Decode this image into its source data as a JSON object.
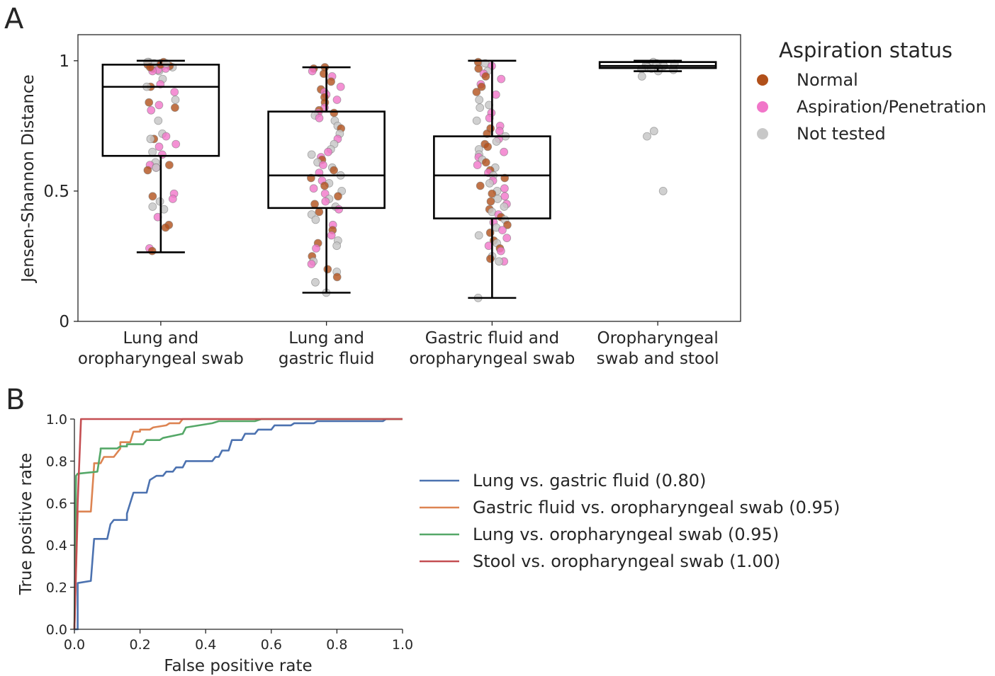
{
  "panel_a": {
    "letter": "A",
    "legend_title": "Aspiration status",
    "legend": [
      {
        "label": "Normal",
        "color": "#B1501A"
      },
      {
        "label": "Aspiration/Penetration",
        "color": "#F176C9"
      },
      {
        "label": "Not tested",
        "color": "#C8C8C8"
      }
    ]
  },
  "panel_b": {
    "letter": "B"
  },
  "chart_data": [
    {
      "type": "box",
      "ylabel": "Jensen-Shannon Distance",
      "xlabel": "",
      "ylim": [
        0,
        1.1
      ],
      "yticks": [
        0,
        0.5,
        1
      ],
      "ytick_labels": [
        "0",
        "0.5",
        "1"
      ],
      "categories": [
        {
          "line1": "Lung and",
          "line2": "oropharyngeal swab"
        },
        {
          "line1": "Lung and",
          "line2": "gastric fluid"
        },
        {
          "line1": "Gastric fluid and",
          "line2": "oropharyngeal swab"
        },
        {
          "line1": "Oropharyngeal",
          "line2": "swab and stool"
        }
      ],
      "boxes": [
        {
          "whisker_low": 0.265,
          "q1": 0.635,
          "median": 0.9,
          "q3": 0.985,
          "whisker_high": 1.0
        },
        {
          "whisker_low": 0.11,
          "q1": 0.435,
          "median": 0.56,
          "q3": 0.805,
          "whisker_high": 0.975
        },
        {
          "whisker_low": 0.09,
          "q1": 0.395,
          "median": 0.56,
          "q3": 0.71,
          "whisker_high": 1.0
        },
        {
          "whisker_low": 0.96,
          "q1": 0.972,
          "median": 0.98,
          "q3": 0.995,
          "whisker_high": 1.0
        }
      ],
      "points": [
        [
          [
            0.99,
            "N"
          ],
          [
            0.98,
            "A"
          ],
          [
            0.995,
            "T"
          ],
          [
            0.97,
            "N"
          ],
          [
            0.96,
            "T"
          ],
          [
            0.99,
            "A"
          ],
          [
            0.985,
            "N"
          ],
          [
            0.975,
            "T"
          ],
          [
            0.995,
            "N"
          ],
          [
            0.965,
            "A"
          ],
          [
            0.99,
            "T"
          ],
          [
            0.98,
            "N"
          ],
          [
            0.97,
            "A"
          ],
          [
            0.995,
            "T"
          ],
          [
            0.985,
            "N"
          ],
          [
            0.96,
            "A"
          ],
          [
            0.99,
            "T"
          ],
          [
            0.975,
            "N"
          ],
          [
            0.93,
            "T"
          ],
          [
            0.91,
            "A"
          ],
          [
            0.9,
            "N"
          ],
          [
            0.9,
            "T"
          ],
          [
            0.88,
            "A"
          ],
          [
            0.85,
            "T"
          ],
          [
            0.84,
            "N"
          ],
          [
            0.83,
            "A"
          ],
          [
            0.82,
            "N"
          ],
          [
            0.81,
            "A"
          ],
          [
            0.77,
            "T"
          ],
          [
            0.72,
            "T"
          ],
          [
            0.71,
            "A"
          ],
          [
            0.7,
            "N"
          ],
          [
            0.7,
            "T"
          ],
          [
            0.68,
            "A"
          ],
          [
            0.67,
            "A"
          ],
          [
            0.65,
            "T"
          ],
          [
            0.64,
            "A"
          ],
          [
            0.61,
            "T"
          ],
          [
            0.6,
            "A"
          ],
          [
            0.6,
            "N"
          ],
          [
            0.59,
            "A"
          ],
          [
            0.59,
            "T"
          ],
          [
            0.58,
            "N"
          ],
          [
            0.49,
            "A"
          ],
          [
            0.48,
            "N"
          ],
          [
            0.47,
            "A"
          ],
          [
            0.46,
            "T"
          ],
          [
            0.44,
            "T"
          ],
          [
            0.43,
            "T"
          ],
          [
            0.4,
            "A"
          ],
          [
            0.37,
            "N"
          ],
          [
            0.36,
            "N"
          ],
          [
            0.28,
            "A"
          ],
          [
            0.27,
            "N"
          ]
        ],
        [
          [
            0.975,
            "N"
          ],
          [
            0.97,
            "N"
          ],
          [
            0.96,
            "A"
          ],
          [
            0.95,
            "N"
          ],
          [
            0.94,
            "A"
          ],
          [
            0.92,
            "N"
          ],
          [
            0.9,
            "A"
          ],
          [
            0.89,
            "N"
          ],
          [
            0.88,
            "A"
          ],
          [
            0.87,
            "A"
          ],
          [
            0.86,
            "N"
          ],
          [
            0.85,
            "A"
          ],
          [
            0.84,
            "N"
          ],
          [
            0.82,
            "A"
          ],
          [
            0.81,
            "N"
          ],
          [
            0.8,
            "A"
          ],
          [
            0.8,
            "N"
          ],
          [
            0.79,
            "T"
          ],
          [
            0.78,
            "A"
          ],
          [
            0.77,
            "T"
          ],
          [
            0.75,
            "T"
          ],
          [
            0.74,
            "N"
          ],
          [
            0.72,
            "T"
          ],
          [
            0.7,
            "A"
          ],
          [
            0.68,
            "T"
          ],
          [
            0.66,
            "T"
          ],
          [
            0.65,
            "A"
          ],
          [
            0.64,
            "T"
          ],
          [
            0.63,
            "A"
          ],
          [
            0.62,
            "N"
          ],
          [
            0.61,
            "T"
          ],
          [
            0.6,
            "A"
          ],
          [
            0.59,
            "T"
          ],
          [
            0.58,
            "N"
          ],
          [
            0.57,
            "A"
          ],
          [
            0.56,
            "T"
          ],
          [
            0.55,
            "N"
          ],
          [
            0.54,
            "A"
          ],
          [
            0.53,
            "T"
          ],
          [
            0.52,
            "N"
          ],
          [
            0.51,
            "A"
          ],
          [
            0.5,
            "T"
          ],
          [
            0.49,
            "A"
          ],
          [
            0.48,
            "N"
          ],
          [
            0.47,
            "T"
          ],
          [
            0.46,
            "A"
          ],
          [
            0.45,
            "N"
          ],
          [
            0.44,
            "T"
          ],
          [
            0.43,
            "A"
          ],
          [
            0.42,
            "N"
          ],
          [
            0.41,
            "T"
          ],
          [
            0.39,
            "T"
          ],
          [
            0.37,
            "A"
          ],
          [
            0.35,
            "N"
          ],
          [
            0.33,
            "A"
          ],
          [
            0.31,
            "T"
          ],
          [
            0.3,
            "N"
          ],
          [
            0.29,
            "T"
          ],
          [
            0.28,
            "A"
          ],
          [
            0.25,
            "N"
          ],
          [
            0.23,
            "T"
          ],
          [
            0.22,
            "A"
          ],
          [
            0.2,
            "N"
          ],
          [
            0.19,
            "T"
          ],
          [
            0.17,
            "N"
          ],
          [
            0.15,
            "T"
          ],
          [
            0.11,
            "T"
          ]
        ],
        [
          [
            0.995,
            "N"
          ],
          [
            0.99,
            "T"
          ],
          [
            0.98,
            "A"
          ],
          [
            0.97,
            "N"
          ],
          [
            0.96,
            "T"
          ],
          [
            0.95,
            "A"
          ],
          [
            0.94,
            "N"
          ],
          [
            0.93,
            "A"
          ],
          [
            0.91,
            "A"
          ],
          [
            0.9,
            "N"
          ],
          [
            0.88,
            "N"
          ],
          [
            0.87,
            "A"
          ],
          [
            0.85,
            "T"
          ],
          [
            0.83,
            "T"
          ],
          [
            0.82,
            "T"
          ],
          [
            0.8,
            "A"
          ],
          [
            0.78,
            "A"
          ],
          [
            0.77,
            "T"
          ],
          [
            0.75,
            "A"
          ],
          [
            0.74,
            "N"
          ],
          [
            0.73,
            "A"
          ],
          [
            0.72,
            "N"
          ],
          [
            0.71,
            "T"
          ],
          [
            0.7,
            "A"
          ],
          [
            0.69,
            "T"
          ],
          [
            0.68,
            "N"
          ],
          [
            0.67,
            "N"
          ],
          [
            0.66,
            "T"
          ],
          [
            0.65,
            "A"
          ],
          [
            0.64,
            "T"
          ],
          [
            0.63,
            "A"
          ],
          [
            0.62,
            "T"
          ],
          [
            0.61,
            "N"
          ],
          [
            0.6,
            "A"
          ],
          [
            0.59,
            "T"
          ],
          [
            0.58,
            "N"
          ],
          [
            0.57,
            "A"
          ],
          [
            0.56,
            "T"
          ],
          [
            0.55,
            "N"
          ],
          [
            0.54,
            "A"
          ],
          [
            0.53,
            "T"
          ],
          [
            0.52,
            "N"
          ],
          [
            0.51,
            "A"
          ],
          [
            0.5,
            "T"
          ],
          [
            0.49,
            "N"
          ],
          [
            0.48,
            "A"
          ],
          [
            0.47,
            "T"
          ],
          [
            0.46,
            "N"
          ],
          [
            0.45,
            "A"
          ],
          [
            0.44,
            "T"
          ],
          [
            0.43,
            "N"
          ],
          [
            0.42,
            "T"
          ],
          [
            0.41,
            "A"
          ],
          [
            0.4,
            "N"
          ],
          [
            0.39,
            "T"
          ],
          [
            0.38,
            "A"
          ],
          [
            0.37,
            "N"
          ],
          [
            0.36,
            "T"
          ],
          [
            0.35,
            "A"
          ],
          [
            0.34,
            "N"
          ],
          [
            0.33,
            "T"
          ],
          [
            0.32,
            "A"
          ],
          [
            0.31,
            "N"
          ],
          [
            0.3,
            "T"
          ],
          [
            0.29,
            "A"
          ],
          [
            0.28,
            "N"
          ],
          [
            0.27,
            "A"
          ],
          [
            0.25,
            "T"
          ],
          [
            0.24,
            "N"
          ],
          [
            0.23,
            "A"
          ],
          [
            0.23,
            "T"
          ],
          [
            0.09,
            "T"
          ]
        ],
        [
          [
            0.995,
            "T"
          ],
          [
            0.99,
            "T"
          ],
          [
            0.988,
            "T"
          ],
          [
            0.985,
            "T"
          ],
          [
            0.983,
            "T"
          ],
          [
            0.98,
            "T"
          ],
          [
            0.978,
            "T"
          ],
          [
            0.975,
            "T"
          ],
          [
            0.972,
            "T"
          ],
          [
            0.97,
            "T"
          ],
          [
            0.968,
            "T"
          ],
          [
            0.965,
            "T"
          ],
          [
            0.96,
            "T"
          ],
          [
            0.94,
            "T"
          ],
          [
            0.73,
            "T"
          ],
          [
            0.71,
            "T"
          ],
          [
            0.5,
            "T"
          ]
        ]
      ]
    },
    {
      "type": "line",
      "xlabel": "False positive rate",
      "ylabel": "True positive rate",
      "xlim": [
        0,
        1.0
      ],
      "ylim": [
        0,
        1.0
      ],
      "xticks": [
        "0.0",
        "0.2",
        "0.4",
        "0.6",
        "0.8",
        "1.0"
      ],
      "yticks": [
        "0.0",
        "0.2",
        "0.4",
        "0.6",
        "0.8",
        "1.0"
      ],
      "series": [
        {
          "name": "Lung vs. gastric fluid (0.80)",
          "color": "#4C72B0",
          "x": [
            0,
            0.01,
            0.01,
            0.05,
            0.06,
            0.1,
            0.11,
            0.12,
            0.16,
            0.16,
            0.17,
            0.18,
            0.19,
            0.22,
            0.23,
            0.24,
            0.25,
            0.27,
            0.28,
            0.3,
            0.31,
            0.33,
            0.34,
            0.37,
            0.38,
            0.42,
            0.43,
            0.44,
            0.45,
            0.47,
            0.48,
            0.51,
            0.52,
            0.55,
            0.56,
            0.6,
            0.61,
            0.66,
            0.67,
            0.73,
            0.74,
            0.94,
            0.95,
            1.0
          ],
          "y": [
            0,
            0.0,
            0.22,
            0.23,
            0.43,
            0.43,
            0.5,
            0.52,
            0.52,
            0.55,
            0.6,
            0.65,
            0.65,
            0.65,
            0.71,
            0.72,
            0.73,
            0.73,
            0.75,
            0.75,
            0.77,
            0.77,
            0.8,
            0.8,
            0.8,
            0.8,
            0.82,
            0.82,
            0.85,
            0.85,
            0.9,
            0.9,
            0.93,
            0.93,
            0.95,
            0.95,
            0.97,
            0.97,
            0.98,
            0.98,
            0.99,
            0.99,
            1.0,
            1.0
          ]
        },
        {
          "name": "Gastric fluid vs. oropharyngeal swab (0.95)",
          "color": "#DD8452",
          "x": [
            0,
            0.01,
            0.01,
            0.05,
            0.06,
            0.06,
            0.08,
            0.09,
            0.12,
            0.14,
            0.14,
            0.17,
            0.18,
            0.2,
            0.2,
            0.23,
            0.24,
            0.28,
            0.29,
            0.32,
            0.33,
            1.0
          ],
          "y": [
            0,
            0.55,
            0.56,
            0.56,
            0.78,
            0.79,
            0.79,
            0.82,
            0.82,
            0.86,
            0.89,
            0.89,
            0.94,
            0.94,
            0.95,
            0.95,
            0.96,
            0.97,
            0.98,
            0.98,
            1.0,
            1.0
          ]
        },
        {
          "name": "Lung vs. oropharyngeal swab (0.95)",
          "color": "#55A868",
          "x": [
            0,
            0.005,
            0.01,
            0.07,
            0.08,
            0.08,
            0.13,
            0.14,
            0.16,
            0.16,
            0.21,
            0.22,
            0.26,
            0.27,
            0.33,
            0.34,
            0.38,
            0.42,
            0.44,
            0.5,
            0.55,
            0.57,
            0.58,
            1.0
          ],
          "y": [
            0,
            0.73,
            0.74,
            0.75,
            0.85,
            0.86,
            0.86,
            0.87,
            0.87,
            0.88,
            0.88,
            0.9,
            0.9,
            0.91,
            0.93,
            0.96,
            0.97,
            0.98,
            0.99,
            0.99,
            0.99,
            1.0,
            1.0,
            1.0
          ]
        },
        {
          "name": "Stool vs. oropharyngeal swab (1.00)",
          "color": "#C44E52",
          "x": [
            0,
            0.01,
            0.02,
            1.0
          ],
          "y": [
            0,
            0.6,
            1.0,
            1.0
          ]
        }
      ]
    }
  ]
}
